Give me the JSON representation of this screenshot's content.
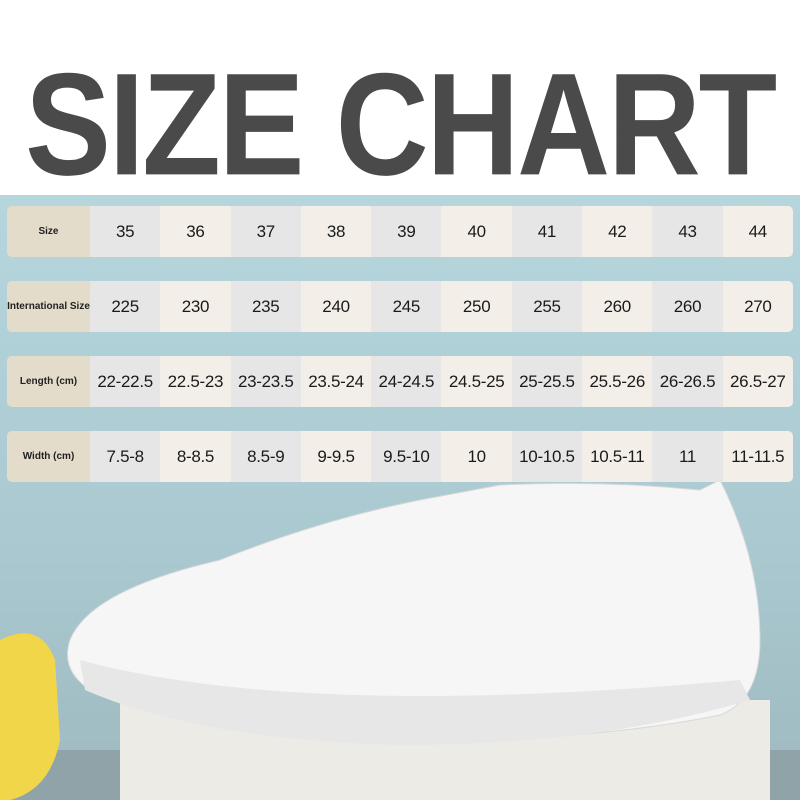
{
  "title": "SIZE CHART",
  "rows": [
    {
      "label": "Size",
      "values": [
        "35",
        "36",
        "37",
        "38",
        "39",
        "40",
        "41",
        "42",
        "43",
        "44"
      ]
    },
    {
      "label": "International Size",
      "values": [
        "225",
        "230",
        "235",
        "240",
        "245",
        "250",
        "255",
        "260",
        "260",
        "270"
      ]
    },
    {
      "label": "Length (cm)",
      "values": [
        "22-22.5",
        "22.5-23",
        "23-23.5",
        "23.5-24",
        "24-24.5",
        "24.5-25",
        "25-25.5",
        "25.5-26",
        "26-26.5",
        "26.5-27"
      ]
    },
    {
      "label": "Width (cm)",
      "values": [
        "7.5-8",
        "8-8.5",
        "8.5-9",
        "9-9.5",
        "9.5-10",
        "10",
        "10-10.5",
        "10.5-11",
        "11",
        "11-11.5"
      ]
    }
  ],
  "colors": {
    "title": "#4a4a4a",
    "background": "#b6d6dd",
    "label_cell": "#e3dccb"
  }
}
